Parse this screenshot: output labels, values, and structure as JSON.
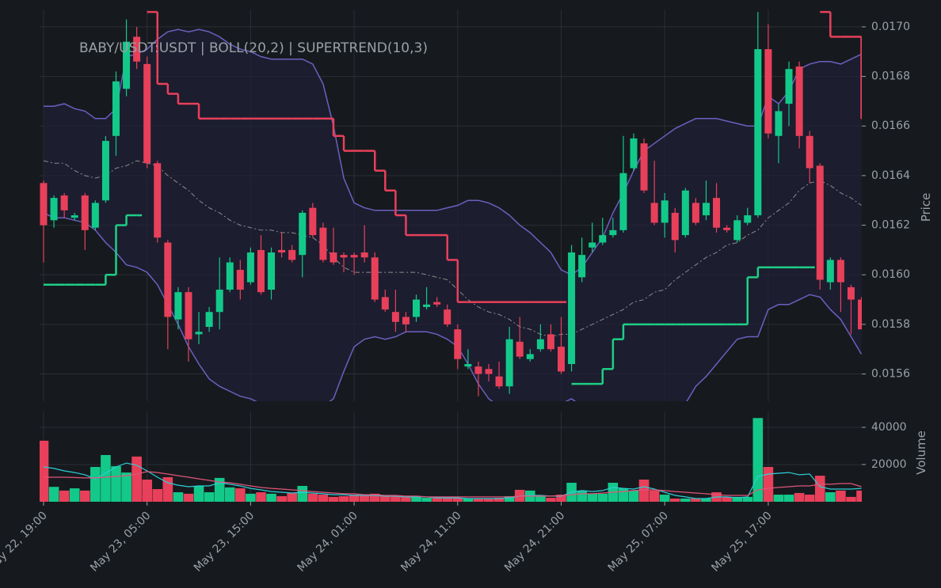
{
  "chart_data": [
    {
      "type": "candlestick",
      "title": "BABY/USDT:USDT | BOLL(20,2) | SUPERTREND(10,3)",
      "ylabel": "Price",
      "categories": [
        "May 22, 19:00",
        null,
        null,
        null,
        null,
        null,
        null,
        null,
        null,
        null,
        "May 23, 05:00",
        null,
        null,
        null,
        null,
        null,
        null,
        null,
        null,
        null,
        "May 23, 15:00",
        null,
        null,
        null,
        null,
        null,
        null,
        null,
        null,
        null,
        "May 24, 01:00",
        null,
        null,
        null,
        null,
        null,
        null,
        null,
        null,
        null,
        "May 24, 11:00",
        null,
        null,
        null,
        null,
        null,
        null,
        null,
        null,
        null,
        "May 24, 21:00",
        null,
        null,
        null,
        null,
        null,
        null,
        null,
        null,
        null,
        "May 25, 07:00",
        null,
        null,
        null,
        null,
        null,
        null,
        null,
        null,
        null,
        "May 25, 17:00",
        null,
        null,
        null,
        null,
        null,
        null,
        null,
        null,
        null
      ],
      "open": [
        0.01637,
        0.01622,
        0.01632,
        0.01623,
        0.01632,
        0.01619,
        0.0163,
        0.01656,
        0.01675,
        0.01696,
        0.01685,
        0.01645,
        0.01613,
        0.01582,
        0.01593,
        0.01576,
        0.01579,
        0.01585,
        0.01594,
        0.01602,
        0.01597,
        0.0161,
        0.01594,
        0.0161,
        0.0161,
        0.01608,
        0.01627,
        0.01619,
        0.01609,
        0.01608,
        0.01608,
        0.01609,
        0.01607,
        0.01591,
        0.01585,
        0.01583,
        0.01583,
        0.01587,
        0.01589,
        0.01586,
        0.01578,
        0.01563,
        0.01563,
        0.01562,
        0.01559,
        0.01555,
        0.01573,
        0.01566,
        0.0157,
        0.01576,
        0.01571,
        0.01564,
        0.01599,
        0.01611,
        0.01613,
        0.01616,
        0.01618,
        0.01643,
        0.01653,
        0.01629,
        0.01621,
        0.01625,
        0.01616,
        0.01629,
        0.01624,
        0.01631,
        0.01619,
        0.01614,
        0.01621,
        0.01624,
        0.01691,
        0.01656,
        0.01669,
        0.01684,
        0.01656,
        0.01644,
        0.01597,
        0.01606,
        0.01595,
        0.0159
      ],
      "high": [
        0.01638,
        0.01632,
        0.01633,
        0.01625,
        0.01633,
        0.0163,
        0.01656,
        0.01682,
        0.01703,
        0.017,
        0.01688,
        0.01646,
        0.01614,
        0.01595,
        0.01595,
        0.01585,
        0.01587,
        0.01607,
        0.01607,
        0.01606,
        0.01611,
        0.01616,
        0.01611,
        0.01617,
        0.01612,
        0.01626,
        0.01629,
        0.01621,
        0.01619,
        0.01609,
        0.01609,
        0.0162,
        0.01609,
        0.01594,
        0.01594,
        0.01585,
        0.01592,
        0.01595,
        0.01591,
        0.01588,
        0.0158,
        0.0157,
        0.01565,
        0.01564,
        0.01565,
        0.01579,
        0.01583,
        0.0157,
        0.0158,
        0.0158,
        0.01583,
        0.01612,
        0.01615,
        0.01621,
        0.01623,
        0.01623,
        0.01656,
        0.01657,
        0.01655,
        0.01646,
        0.01633,
        0.01627,
        0.01635,
        0.01631,
        0.01638,
        0.01637,
        0.0162,
        0.01624,
        0.01627,
        0.01706,
        0.01701,
        0.01669,
        0.01686,
        0.01686,
        0.01658,
        0.01645,
        0.01607,
        0.01607,
        0.01596,
        0.01591
      ],
      "low": [
        0.01605,
        0.01619,
        0.01623,
        0.01622,
        0.0161,
        0.01618,
        0.01629,
        0.01648,
        0.01672,
        0.01683,
        0.01643,
        0.01613,
        0.0157,
        0.01578,
        0.01565,
        0.01572,
        0.01577,
        0.01578,
        0.01593,
        0.0159,
        0.01596,
        0.01592,
        0.0159,
        0.01607,
        0.01605,
        0.01599,
        0.01615,
        0.01605,
        0.01604,
        0.01601,
        0.016,
        0.01605,
        0.01589,
        0.01585,
        0.01577,
        0.01577,
        0.01581,
        0.01586,
        0.01587,
        0.01579,
        0.01562,
        0.01562,
        0.01551,
        0.01557,
        0.01554,
        0.01552,
        0.01566,
        0.01565,
        0.01569,
        0.01569,
        0.0156,
        0.01561,
        0.01597,
        0.01609,
        0.01612,
        0.01615,
        0.01617,
        0.01642,
        0.01633,
        0.0162,
        0.01615,
        0.01609,
        0.01615,
        0.0162,
        0.01622,
        0.01617,
        0.01617,
        0.01613,
        0.0162,
        0.01623,
        0.01655,
        0.01645,
        0.0166,
        0.01651,
        0.01637,
        0.01594,
        0.01594,
        0.01585,
        0.01576,
        0.01578
      ],
      "close": [
        0.0162,
        0.01631,
        0.01626,
        0.01624,
        0.01618,
        0.01629,
        0.01654,
        0.01678,
        0.01694,
        0.01686,
        0.01645,
        0.01615,
        0.01583,
        0.01593,
        0.01574,
        0.01577,
        0.01585,
        0.01594,
        0.01605,
        0.01594,
        0.01609,
        0.01593,
        0.01609,
        0.01609,
        0.01606,
        0.01625,
        0.01616,
        0.01606,
        0.01605,
        0.01607,
        0.01607,
        0.01607,
        0.0159,
        0.01586,
        0.01581,
        0.0158,
        0.0159,
        0.01588,
        0.01588,
        0.0158,
        0.01566,
        0.01564,
        0.0156,
        0.0156,
        0.01555,
        0.01574,
        0.01567,
        0.01568,
        0.01574,
        0.0157,
        0.01561,
        0.01609,
        0.01608,
        0.01613,
        0.01616,
        0.01618,
        0.01641,
        0.01655,
        0.01634,
        0.01621,
        0.0163,
        0.01614,
        0.01634,
        0.01621,
        0.01629,
        0.01619,
        0.01618,
        0.01622,
        0.01624,
        0.01691,
        0.01657,
        0.01666,
        0.01683,
        0.01656,
        0.01643,
        0.01598,
        0.01606,
        0.01597,
        0.0159,
        0.01578
      ],
      "up_color": "#13c98a",
      "down_color": "#e8405a",
      "bollinger": {
        "color": "#6d5fc0",
        "middle_color": "#8c8c8c",
        "fill": "#1f2036",
        "upper": [
          0.01668,
          0.01668,
          0.01669,
          0.01667,
          0.01666,
          0.01663,
          0.01663,
          0.01667,
          0.01688,
          0.01689,
          0.01691,
          0.01695,
          0.01698,
          0.01699,
          0.01698,
          0.01699,
          0.01698,
          0.01696,
          0.01693,
          0.01691,
          0.0169,
          0.01688,
          0.01687,
          0.01687,
          0.01687,
          0.01687,
          0.01685,
          0.01677,
          0.0166,
          0.01639,
          0.01629,
          0.01627,
          0.01626,
          0.01626,
          0.01626,
          0.01626,
          0.01626,
          0.01626,
          0.01626,
          0.01627,
          0.01628,
          0.0163,
          0.0163,
          0.01629,
          0.01627,
          0.01624,
          0.0162,
          0.01617,
          0.01613,
          0.01609,
          0.01602,
          0.016,
          0.01603,
          0.01609,
          0.01615,
          0.01625,
          0.01633,
          0.01642,
          0.0165,
          0.01653,
          0.01656,
          0.01659,
          0.01661,
          0.01663,
          0.01663,
          0.01663,
          0.01662,
          0.01661,
          0.0166,
          0.0166,
          0.01672,
          0.01669,
          0.01674,
          0.01683,
          0.01685,
          0.01686,
          0.01686,
          0.01685,
          0.01687,
          0.01689
        ],
        "middle": [
          0.01646,
          0.01645,
          0.01645,
          0.01642,
          0.0164,
          0.01639,
          0.0164,
          0.01643,
          0.01644,
          0.01646,
          0.01645,
          0.01644,
          0.0164,
          0.01637,
          0.01634,
          0.0163,
          0.01627,
          0.01625,
          0.01622,
          0.0162,
          0.01619,
          0.01618,
          0.01618,
          0.01617,
          0.01617,
          0.01616,
          0.01615,
          0.01612,
          0.01607,
          0.01603,
          0.01601,
          0.01601,
          0.01601,
          0.01601,
          0.01601,
          0.01601,
          0.01601,
          0.016,
          0.01599,
          0.01598,
          0.01594,
          0.0159,
          0.01587,
          0.01585,
          0.01584,
          0.01582,
          0.01579,
          0.01578,
          0.01576,
          0.01575,
          0.01576,
          0.01576,
          0.01578,
          0.0158,
          0.01582,
          0.01584,
          0.01586,
          0.01589,
          0.0159,
          0.01593,
          0.01594,
          0.01598,
          0.01601,
          0.01604,
          0.01607,
          0.01609,
          0.01612,
          0.01613,
          0.01616,
          0.01618,
          0.01623,
          0.01626,
          0.01629,
          0.01634,
          0.01637,
          0.01638,
          0.01636,
          0.01633,
          0.01631,
          0.01628
        ],
        "lower": [
          0.01625,
          0.01623,
          0.01623,
          0.01622,
          0.01621,
          0.01618,
          0.01613,
          0.01609,
          0.01604,
          0.01603,
          0.01601,
          0.01596,
          0.01588,
          0.0158,
          0.01571,
          0.01564,
          0.01558,
          0.01555,
          0.01553,
          0.01551,
          0.0155,
          0.01548,
          0.01547,
          0.01545,
          0.01545,
          0.01544,
          0.01545,
          0.01547,
          0.0155,
          0.01561,
          0.01571,
          0.01574,
          0.01575,
          0.01574,
          0.01575,
          0.01577,
          0.01577,
          0.01577,
          0.01576,
          0.01574,
          0.01571,
          0.01564,
          0.01556,
          0.0155,
          0.01547,
          0.01545,
          0.01543,
          0.01542,
          0.01542,
          0.01545,
          0.01548,
          0.0155,
          0.01547,
          0.01543,
          0.0154,
          0.01537,
          0.01532,
          0.01531,
          0.01529,
          0.01532,
          0.01537,
          0.01542,
          0.01548,
          0.01555,
          0.01559,
          0.01564,
          0.01569,
          0.01574,
          0.01575,
          0.01575,
          0.01586,
          0.01588,
          0.01588,
          0.0159,
          0.01592,
          0.01591,
          0.01586,
          0.01582,
          0.01575,
          0.01568
        ]
      },
      "supertrend": {
        "up_color": "#1fcf86",
        "down_color": "#e9405a",
        "up": [
          0.01596,
          0.01596,
          0.01596,
          0.01596,
          0.01596,
          0.01596,
          0.016,
          0.0162,
          0.01624,
          0.01624,
          null,
          null,
          null,
          null,
          null,
          null,
          null,
          null,
          null,
          null,
          null,
          null,
          null,
          null,
          null,
          null,
          null,
          null,
          null,
          null,
          null,
          null,
          null,
          null,
          null,
          null,
          null,
          null,
          null,
          null,
          null,
          null,
          null,
          null,
          null,
          null,
          null,
          null,
          null,
          null,
          null,
          0.01556,
          0.01556,
          0.01556,
          0.01562,
          0.01574,
          0.0158,
          0.0158,
          0.0158,
          0.0158,
          0.0158,
          0.0158,
          0.0158,
          0.0158,
          0.0158,
          0.0158,
          0.0158,
          0.0158,
          0.01599,
          0.01603,
          0.01603,
          0.01603,
          0.01603,
          0.01603,
          0.01603,
          null,
          null,
          null,
          null,
          null
        ],
        "down": [
          null,
          null,
          null,
          null,
          null,
          null,
          null,
          null,
          null,
          null,
          0.01706,
          0.01677,
          0.01673,
          0.01669,
          0.01669,
          0.01663,
          0.01663,
          0.01663,
          0.01663,
          0.01663,
          0.01663,
          0.01663,
          0.01663,
          0.01663,
          0.01663,
          0.01663,
          0.01663,
          0.01663,
          0.01656,
          0.0165,
          0.0165,
          0.0165,
          0.01642,
          0.01634,
          0.01624,
          0.01616,
          0.01616,
          0.01616,
          0.01616,
          0.01606,
          0.01589,
          0.01589,
          0.01589,
          0.01589,
          0.01589,
          0.01589,
          0.01589,
          0.01589,
          0.01589,
          0.01589,
          0.01589,
          null,
          null,
          null,
          null,
          null,
          null,
          null,
          null,
          null,
          null,
          null,
          null,
          null,
          null,
          null,
          null,
          null,
          null,
          null,
          null,
          null,
          null,
          null,
          null,
          0.01706,
          0.01696,
          0.01696,
          0.01696,
          0.01663
        ]
      },
      "ylim": [
        0.01549,
        0.01707
      ],
      "yticks": [
        {
          "value": 0.0156,
          "label": "0.0156"
        },
        {
          "value": 0.0158,
          "label": "0.0158"
        },
        {
          "value": 0.016,
          "label": "0.0160"
        },
        {
          "value": 0.0162,
          "label": "0.0162"
        },
        {
          "value": 0.0164,
          "label": "0.0164"
        },
        {
          "value": 0.0166,
          "label": "0.0166"
        },
        {
          "value": 0.0168,
          "label": "0.0168"
        },
        {
          "value": 0.017,
          "label": "0.0170"
        }
      ],
      "grid": true,
      "grid_color": "#2b2f36"
    },
    {
      "type": "bar",
      "ylabel": "Volume",
      "values": [
        32800,
        8000,
        6000,
        7200,
        6000,
        18700,
        25100,
        19100,
        15700,
        24300,
        11900,
        6800,
        13200,
        5100,
        4300,
        8500,
        5100,
        12800,
        7700,
        7200,
        4300,
        5100,
        4300,
        3000,
        4700,
        8500,
        4300,
        3800,
        2600,
        3000,
        3800,
        3400,
        4300,
        3400,
        3000,
        2600,
        3000,
        2100,
        2100,
        2100,
        2100,
        1700,
        1700,
        1700,
        2100,
        3000,
        6400,
        6000,
        3000,
        2100,
        3800,
        10200,
        6000,
        4300,
        4300,
        10200,
        7200,
        6000,
        11900,
        6000,
        3800,
        1700,
        1700,
        1700,
        1700,
        5100,
        2600,
        2600,
        2600,
        45000,
        18700,
        3800,
        3800,
        4700,
        3800,
        14000,
        5100,
        6000,
        2600,
        6000
      ],
      "series": [
        {
          "color": "#2ccfd6",
          "values": [
            18700,
            17900,
            16600,
            15700,
            14500,
            12300,
            15300,
            18700,
            20800,
            19600,
            16600,
            13200,
            10200,
            8900,
            8100,
            8500,
            8500,
            10200,
            9400,
            8500,
            7200,
            6400,
            5500,
            5100,
            4700,
            5100,
            4700,
            4300,
            3800,
            3800,
            3400,
            3400,
            3400,
            3000,
            3000,
            2600,
            2600,
            2600,
            2100,
            2100,
            2100,
            1700,
            1700,
            1700,
            1700,
            2100,
            3000,
            3400,
            3400,
            3000,
            3000,
            5100,
            6000,
            5500,
            6000,
            7700,
            7200,
            6800,
            8100,
            6800,
            5100,
            3400,
            2600,
            1700,
            1700,
            2600,
            2600,
            2100,
            2600,
            13600,
            14900,
            15300,
            15700,
            14500,
            14900,
            8100,
            6800,
            6800,
            6800,
            7200
          ]
        },
        {
          "color": "#e0557a",
          "values": [
            13200,
            13200,
            13200,
            13000,
            12800,
            12800,
            13200,
            13600,
            14000,
            14900,
            16200,
            15700,
            14900,
            14000,
            13200,
            12300,
            11500,
            10600,
            10200,
            9400,
            8500,
            7700,
            7200,
            6800,
            6400,
            6000,
            5500,
            5100,
            4700,
            4300,
            4300,
            3800,
            3800,
            3400,
            3400,
            3000,
            3000,
            2600,
            2600,
            2600,
            2600,
            2600,
            2600,
            2600,
            2600,
            2600,
            3000,
            3000,
            3000,
            3000,
            3400,
            3800,
            4300,
            4300,
            4700,
            5100,
            5500,
            6000,
            6400,
            6400,
            6000,
            5500,
            5100,
            4700,
            4300,
            3800,
            3400,
            3400,
            3400,
            6400,
            7200,
            7700,
            8100,
            8500,
            8500,
            9400,
            9400,
            9800,
            9800,
            8100
          ]
        }
      ],
      "ylim": [
        0,
        48500
      ],
      "yticks": [
        20000,
        40000
      ]
    }
  ]
}
